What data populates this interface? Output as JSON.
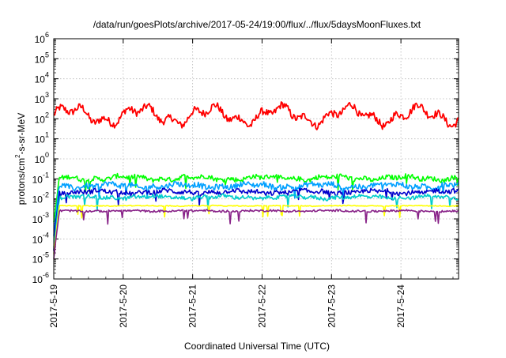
{
  "chart_data": {
    "type": "line",
    "title": "/data/run/goesPlots/archive/2017-05-24/19:00/flux/../flux/5daysMoonFluxes.txt",
    "xlabel": "Coordinated Universal Time (UTC)",
    "ylabel": "protons/cm²-s-sr-MeV",
    "yscale": "log",
    "ylim": [
      1e-06,
      1000000.0
    ],
    "xlim_days": [
      0,
      5.83
    ],
    "x_tick_labels": [
      "2017-5-19",
      "2017-5-20",
      "2017-5-21",
      "2017-5-22",
      "2017-5-23",
      "2017-5-24"
    ],
    "y_tick_labels": [
      {
        "base": "10",
        "exp": "-6"
      },
      {
        "base": "10",
        "exp": "-5"
      },
      {
        "base": "10",
        "exp": "-4"
      },
      {
        "base": "10",
        "exp": "-3"
      },
      {
        "base": "10",
        "exp": "-2"
      },
      {
        "base": "10",
        "exp": "-1"
      },
      {
        "base": "10",
        "exp": "0"
      },
      {
        "base": "10",
        "exp": "1"
      },
      {
        "base": "10",
        "exp": "2"
      },
      {
        "base": "10",
        "exp": "3"
      },
      {
        "base": "10",
        "exp": "4"
      },
      {
        "base": "10",
        "exp": "5"
      },
      {
        "base": "10",
        "exp": "6"
      }
    ],
    "grid": true,
    "legend": "none",
    "series": [
      {
        "color": "#ff0000",
        "approx_level": 150,
        "noise": 0.18,
        "wave": 0.35
      },
      {
        "color": "#00ff00",
        "approx_level": 0.11,
        "noise": 0.12,
        "wave": 0.08
      },
      {
        "color": "#00a0ff",
        "approx_level": 0.045,
        "noise": 0.14,
        "wave": 0.08
      },
      {
        "color": "#0000cc",
        "approx_level": 0.022,
        "noise": 0.12,
        "wave": 0.06
      },
      {
        "color": "#00cccc",
        "approx_level": 0.012,
        "noise": 0.1,
        "wave": 0.05
      },
      {
        "color": "#ffff00",
        "approx_level": 0.0045,
        "noise": 0.02,
        "wave": 0.01
      },
      {
        "color": "#882288",
        "approx_level": 0.0025,
        "noise": 0.05,
        "wave": 0.02
      }
    ]
  }
}
